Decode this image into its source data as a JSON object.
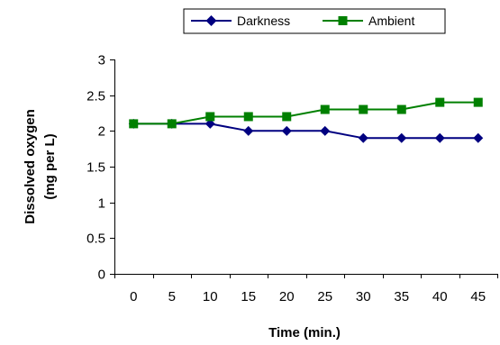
{
  "chart_data": {
    "type": "line",
    "x": [
      0,
      5,
      10,
      15,
      20,
      25,
      30,
      35,
      40,
      45
    ],
    "series": [
      {
        "name": "Darkness",
        "values": [
          2.1,
          2.1,
          2.1,
          2.0,
          2.0,
          2.0,
          1.9,
          1.9,
          1.9,
          1.9
        ],
        "color": "#000080",
        "marker": "diamond"
      },
      {
        "name": "Ambient",
        "values": [
          2.1,
          2.1,
          2.2,
          2.2,
          2.2,
          2.3,
          2.3,
          2.3,
          2.4,
          2.4
        ],
        "color": "#008000",
        "marker": "square"
      }
    ],
    "xlabel": "Time (min.)",
    "ylabel_line1": "Dissolved oxygen",
    "ylabel_line2": "(mg per L)",
    "ylim": [
      0,
      3
    ],
    "yticks": [
      0,
      0.5,
      1,
      1.5,
      2,
      2.5,
      3
    ],
    "ytick_labels": [
      "0",
      "0.5",
      "1",
      "1.5",
      "2",
      "2.5",
      "3"
    ],
    "xtick_labels": [
      "0",
      "5",
      "10",
      "15",
      "20",
      "25",
      "30",
      "35",
      "40",
      "45"
    ],
    "grid": false,
    "legend_position": "top"
  }
}
